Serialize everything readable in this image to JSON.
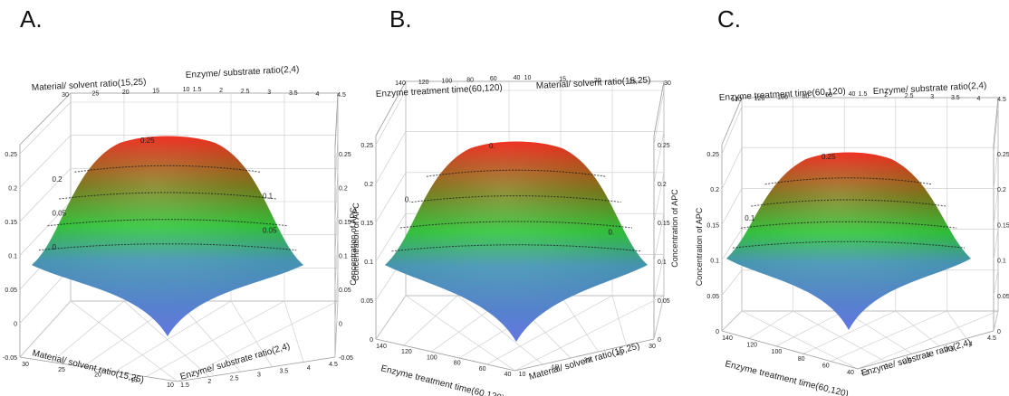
{
  "chart_data": [
    {
      "type": "surface",
      "panel_label": "A.",
      "surface_color_scale": [
        "#6f86ff",
        "#2fd23a",
        "#ff2010"
      ],
      "ylabel": "Concentration of APC",
      "y_ticks": [
        "-0.05",
        "0",
        "0.05",
        "0.1",
        "0.15",
        "0.2",
        "0.25"
      ],
      "back_axis_left": {
        "label": "Material/ solvent ratio(15,25)",
        "ticks": [
          "30",
          "25",
          "20",
          "15",
          "10"
        ]
      },
      "back_axis_right": {
        "label": "Enzyme/ substrate ratio(2,4)",
        "ticks": [
          "1.5",
          "2",
          "2.5",
          "3",
          "3.5",
          "4",
          "4.5"
        ]
      },
      "front_axis_left": {
        "label": "Material/ solvent ratio(15,25)",
        "ticks": [
          "30",
          "25",
          "20",
          "15",
          "10"
        ]
      },
      "front_axis_right": {
        "label": "Enzyme/ substrate ratio(2,4)",
        "ticks": [
          "1.5",
          "2",
          "2.5",
          "3",
          "3.5",
          "4",
          "4.5"
        ]
      },
      "contour_labels": [
        "0.25",
        "0.2",
        "0.1",
        "0.05",
        "0.05",
        "0"
      ],
      "peak": 0.25
    },
    {
      "type": "surface",
      "panel_label": "B.",
      "surface_color_scale": [
        "#6f86ff",
        "#2fd23a",
        "#ff2010"
      ],
      "ylabel": "Concentration of APC",
      "y_ticks": [
        "0",
        "0.05",
        "0.1",
        "0.15",
        "0.2",
        "0.25"
      ],
      "back_axis_left": {
        "label": "Enzyme treatment time(60,120)",
        "ticks": [
          "140",
          "120",
          "100",
          "80",
          "60",
          "40"
        ]
      },
      "back_axis_right": {
        "label": "Material/ solvent ratio(15,25)",
        "ticks": [
          "10",
          "15",
          "20",
          "25",
          "30"
        ]
      },
      "front_axis_left": {
        "label": "Enzyme treatment time(60,120)",
        "ticks": [
          "140",
          "120",
          "100",
          "80",
          "60",
          "40"
        ]
      },
      "front_axis_right": {
        "label": "Material/ solvent ratio(15,25)",
        "ticks": [
          "10",
          "15",
          "20",
          "25",
          "30"
        ]
      },
      "contour_labels": [
        "0.",
        "0.",
        "0."
      ],
      "peak": 0.25
    },
    {
      "type": "surface",
      "panel_label": "C.",
      "surface_color_scale": [
        "#6f86ff",
        "#2fd23a",
        "#ff2010"
      ],
      "ylabel": "Concentration of APC",
      "y_ticks": [
        "0",
        "0.05",
        "0.1",
        "0.15",
        "0.2",
        "0.25"
      ],
      "back_axis_left": {
        "label": "Enzyme treatment time(60,120)",
        "ticks": [
          "140",
          "120",
          "100",
          "80",
          "60",
          "40"
        ]
      },
      "back_axis_right": {
        "label": "Enzyme/ substrate ratio(2,4)",
        "ticks": [
          "1.5",
          "2",
          "2.5",
          "3",
          "3.5",
          "4",
          "4.5"
        ]
      },
      "front_axis_left": {
        "label": "Enzyme treatment time(60,120)",
        "ticks": [
          "140",
          "120",
          "100",
          "80",
          "60",
          "40"
        ]
      },
      "front_axis_right": {
        "label": "Enzyme/ substrate ratio(2,4)",
        "ticks": [
          "1.5",
          "2",
          "2.5",
          "3",
          "3.5",
          "4",
          "4.5"
        ]
      },
      "contour_labels": [
        "0.25",
        "0.1"
      ],
      "peak": 0.25
    }
  ]
}
